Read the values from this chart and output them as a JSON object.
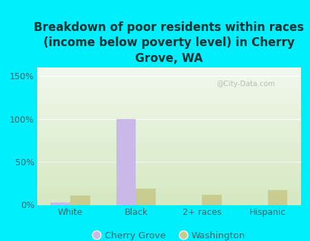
{
  "title": "Breakdown of poor residents within races\n(income below poverty level) in Cherry\nGrove, WA",
  "categories": [
    "White",
    "Black",
    "2+ races",
    "Hispanic"
  ],
  "cherry_grove": [
    3,
    100,
    0,
    0
  ],
  "washington": [
    11,
    19,
    12,
    17
  ],
  "cherry_grove_color": "#c9b8e8",
  "washington_color": "#c8cc90",
  "background_color": "#00efff",
  "plot_bg_top": "#f0f8ec",
  "plot_bg_bottom": "#d4e8c0",
  "ylim": [
    0,
    160
  ],
  "yticks": [
    0,
    50,
    100,
    150
  ],
  "ytick_labels": [
    "0%",
    "50%",
    "100%",
    "150%"
  ],
  "bar_width": 0.3,
  "title_fontsize": 12,
  "tick_fontsize": 9,
  "title_color": "#003333",
  "tick_color": "#336666",
  "legend_labels": [
    "Cherry Grove",
    "Washington"
  ],
  "watermark": "@City-Data.com"
}
